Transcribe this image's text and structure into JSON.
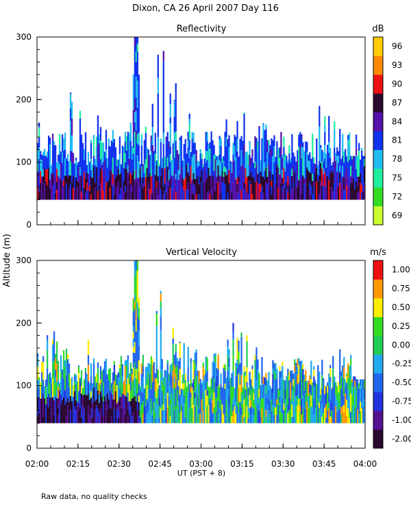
{
  "title": "Dixon, CA 26 April 2007  Day 116",
  "footnote": "Raw data, no quality checks",
  "chart_data": [
    {
      "type": "heatmap",
      "title": "Reflectivity",
      "xlabel": "UT  (PST + 8)",
      "ylabel": "Altitude (m)",
      "x_ticks": [
        "02:00",
        "02:15",
        "02:30",
        "02:45",
        "03:00",
        "03:15",
        "03:30",
        "03:45",
        "04:00"
      ],
      "xlim": [
        "02:00",
        "04:00"
      ],
      "ylim": [
        0,
        300
      ],
      "y_ticks": [
        0,
        100,
        200,
        300
      ],
      "colorbar_unit": "dB",
      "colorbar_labels": [
        "69",
        "72",
        "75",
        "78",
        "81",
        "84",
        "87",
        "90",
        "93",
        "96"
      ],
      "colorbar_colors": [
        "#ccff33",
        "#33dd22",
        "#22eea0",
        "#22bbf0",
        "#1133ee",
        "#5511aa",
        "#2a0a2e",
        "#ee1111",
        "#ff8800",
        "#ffcc00"
      ],
      "approx_echo_top_m": [
        180,
        220,
        140,
        300,
        140,
        220,
        120,
        200,
        140
      ],
      "echo_base_m": 40
    },
    {
      "type": "heatmap",
      "title": "Vertical Velocity",
      "xlabel": "UT  (PST + 8)",
      "ylabel": "Altitude (m)",
      "x_ticks": [
        "02:00",
        "02:15",
        "02:30",
        "02:45",
        "03:00",
        "03:15",
        "03:30",
        "03:45",
        "04:00"
      ],
      "xlim": [
        "02:00",
        "04:00"
      ],
      "ylim": [
        0,
        300
      ],
      "y_ticks": [
        0,
        100,
        200,
        300
      ],
      "colorbar_unit": "m/s",
      "colorbar_labels": [
        "-2.00",
        "-1.00",
        "-0.75",
        "-0.50",
        "-0.25",
        "0.00",
        "0.25",
        "0.50",
        "0.75",
        "1.00"
      ],
      "colorbar_colors": [
        "#2a0a2e",
        "#55118f",
        "#2233dd",
        "#2266ee",
        "#22aaee",
        "#22cc55",
        "#33dd22",
        "#ffee00",
        "#ff9900",
        "#ee1111"
      ],
      "approx_echo_top_m": [
        220,
        200,
        140,
        300,
        140,
        220,
        120,
        200,
        140
      ],
      "echo_base_m": 40
    }
  ]
}
